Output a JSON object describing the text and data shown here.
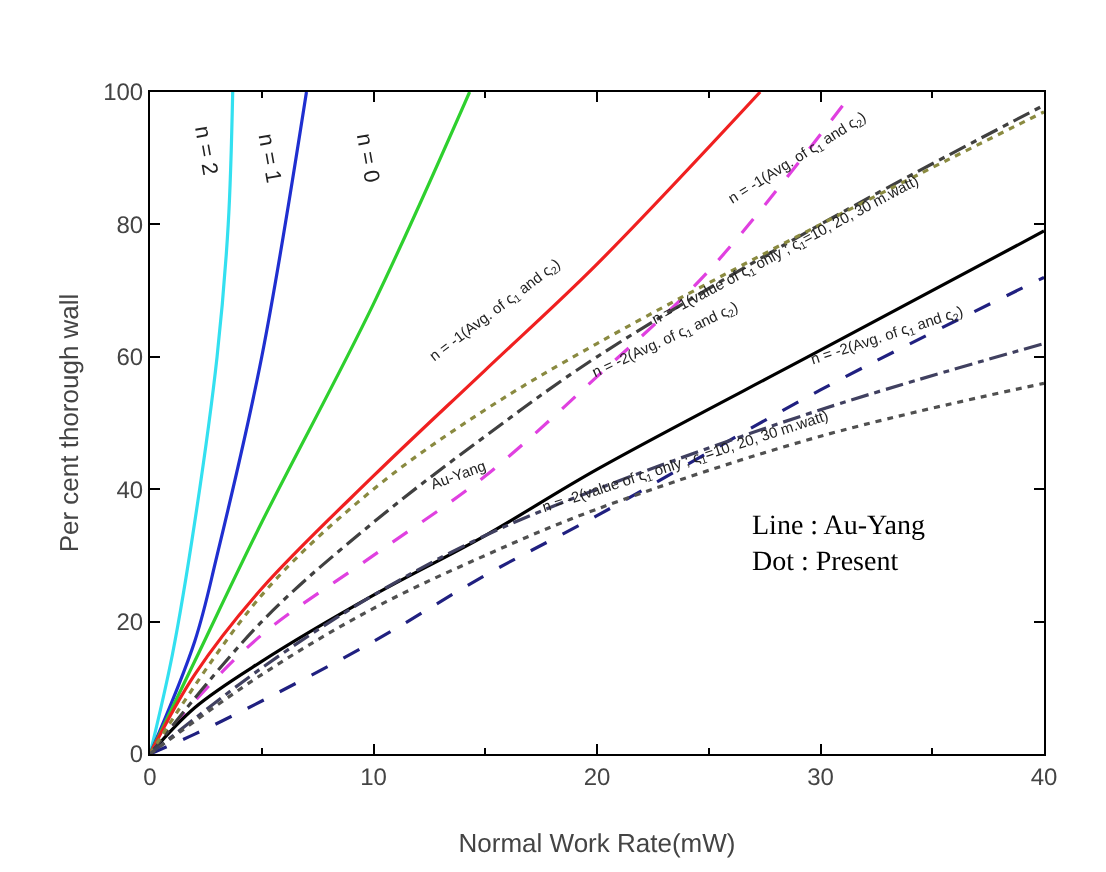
{
  "chart_data": {
    "type": "line",
    "xlabel": "Normal Work Rate(mW)",
    "ylabel": "Per cent thorough wall",
    "xlim": [
      0,
      40
    ],
    "ylim": [
      0,
      100
    ],
    "xticks": [
      0,
      10,
      20,
      30,
      40
    ],
    "yticks": [
      0,
      20,
      40,
      60,
      80,
      100
    ],
    "grid": false,
    "series": [
      {
        "color": "#33e0f0",
        "line_style": "solid",
        "x": [
          0,
          1,
          2,
          3,
          3.5,
          3.7
        ],
        "values": [
          0,
          15,
          35,
          60,
          80,
          100
        ]
      },
      {
        "color": "#1f2fd0",
        "line_style": "solid",
        "x": [
          0,
          2,
          3,
          5,
          7
        ],
        "values": [
          0,
          17,
          30,
          60,
          100
        ]
      },
      {
        "color": "#2ed02e",
        "line_style": "solid",
        "x": [
          0,
          2,
          5,
          10,
          14.3
        ],
        "values": [
          0,
          14,
          35,
          68,
          100
        ]
      },
      {
        "color": "#f02020",
        "line_style": "solid",
        "x": [
          0,
          2,
          5,
          10,
          15,
          20,
          27.3
        ],
        "values": [
          0,
          12,
          25,
          42,
          58,
          74,
          100
        ]
      },
      {
        "color": "#e040e0",
        "line_style": "dashed",
        "x": [
          0,
          2,
          5,
          10,
          15,
          20,
          25,
          31
        ],
        "values": [
          0,
          8,
          18,
          30,
          42,
          57,
          73,
          98
        ]
      },
      {
        "color": "#000000",
        "line_style": "solid",
        "x": [
          0,
          2,
          5,
          10,
          15,
          20,
          30,
          40
        ],
        "values": [
          0,
          7,
          14,
          24,
          33,
          43,
          61,
          79
        ]
      },
      {
        "color": "#202080",
        "line_style": "dashed",
        "x": [
          0,
          2,
          5,
          10,
          15,
          20,
          30,
          40
        ],
        "values": [
          0,
          3,
          8,
          17,
          27,
          36,
          55,
          72
        ]
      },
      {
        "color": "#404040",
        "line_style": "dashdot",
        "x": [
          0,
          5,
          10,
          15,
          20,
          30,
          40
        ],
        "values": [
          0,
          20,
          35,
          48,
          60,
          80,
          98
        ]
      },
      {
        "color": "#8a8a40",
        "line_style": "dotted",
        "x": [
          0,
          5,
          10,
          15,
          20,
          30,
          40
        ],
        "values": [
          0,
          24,
          40,
          52,
          62,
          80,
          97
        ]
      },
      {
        "color": "#404060",
        "line_style": "dashdot",
        "x": [
          0,
          5,
          10,
          15,
          20,
          30,
          40
        ],
        "values": [
          0,
          13,
          24,
          33,
          40,
          52,
          62
        ]
      },
      {
        "color": "#505050",
        "line_style": "dotted",
        "x": [
          0,
          5,
          10,
          15,
          20,
          30,
          40
        ],
        "values": [
          0,
          12,
          22,
          30,
          37,
          48,
          56
        ]
      }
    ],
    "annotations": [
      "n = 2",
      "n = 1",
      "n = 0",
      "n = -1(Avg. of ς$_{1}$ and ς$_{2}$)",
      "n = -1(Avg. of ς$_{1}$ and ς$_{2}$)",
      "n = -1(value of ς$_{1}$ only ; ς$_{1}$=10, 20, 30 m.watt)",
      "n = -2(Avg. of ς$_{1}$ and ς$_{2}$)",
      "n = -2(Avg. of ς$_{1}$ and ς$_{2}$)",
      "n = -2(value of ς$_{1}$ only ; ς$_{1}$=10, 20, 30 m.watt)",
      "Au-Yang",
      "Line : Au-Yang\nDot : Present"
    ]
  }
}
